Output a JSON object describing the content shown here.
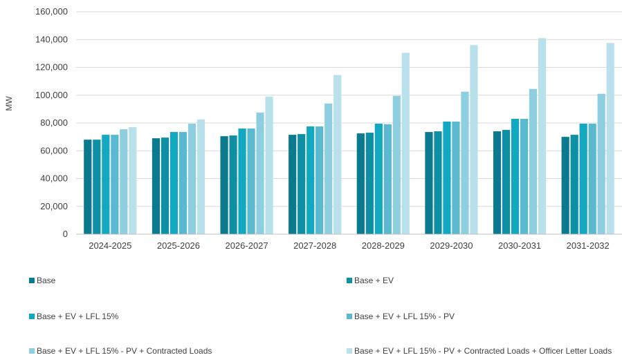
{
  "chart_data": {
    "type": "bar",
    "ylabel": "MW",
    "xlabel": "",
    "ylim": [
      0,
      160000
    ],
    "ytick_step": 20000,
    "grid": true,
    "legend_position": "bottom",
    "categories": [
      "2024-2025",
      "2025-2026",
      "2026-2027",
      "2027-2028",
      "2028-2029",
      "2029-2030",
      "2030-2031",
      "2031-2032"
    ],
    "series": [
      {
        "name": "Base",
        "color": "#0b7a8f",
        "values": [
          68000,
          69000,
          70500,
          71500,
          72500,
          73500,
          74000,
          70000
        ]
      },
      {
        "name": "Base + EV",
        "color": "#0e8fa3",
        "values": [
          68000,
          69500,
          71000,
          72000,
          73000,
          74000,
          75000,
          71500
        ]
      },
      {
        "name": "Base + EV + LFL 15%",
        "color": "#12a8c0",
        "values": [
          71500,
          73500,
          76000,
          77500,
          79500,
          81000,
          83000,
          79500
        ]
      },
      {
        "name": "Base + EV + LFL 15% - PV",
        "color": "#5ab8cf",
        "values": [
          71500,
          73500,
          76000,
          77500,
          79000,
          81000,
          83000,
          79500
        ]
      },
      {
        "name": "Base + EV + LFL 15% - PV + Contracted Loads",
        "color": "#8dcfe0",
        "values": [
          75500,
          79500,
          87500,
          94000,
          99500,
          102500,
          104500,
          101000
        ]
      },
      {
        "name": "Base + EV + LFL 15% - PV + Contracted Loads + Officer Letter Loads",
        "color": "#b9e1ec",
        "values": [
          77000,
          82500,
          99000,
          114500,
          130500,
          136000,
          141000,
          137500
        ]
      }
    ]
  }
}
